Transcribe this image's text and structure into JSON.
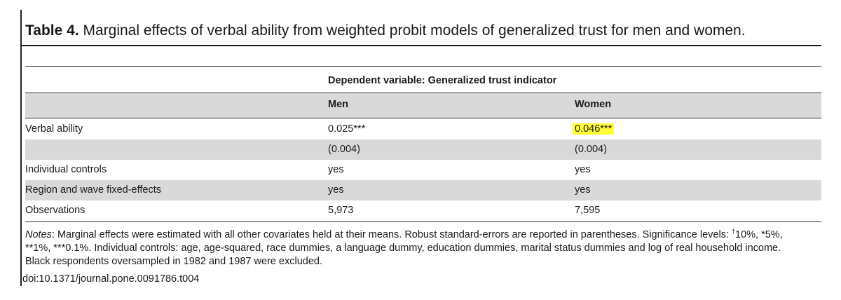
{
  "table": {
    "label": "Table 4.",
    "title": "Marginal effects of verbal ability from weighted probit models of generalized trust for men and women.",
    "dependent_variable_header": "Dependent variable: Generalized trust indicator",
    "columns": [
      "",
      "Men",
      "Women"
    ],
    "rows": [
      {
        "label": "Verbal ability",
        "men": "0.025***",
        "women": "0.046***"
      },
      {
        "label": "",
        "men": "(0.004)",
        "women": "(0.004)"
      },
      {
        "label": "Individual controls",
        "men": "yes",
        "women": "yes"
      },
      {
        "label": "Region and wave fixed-effects",
        "men": "yes",
        "women": "yes"
      },
      {
        "label": "Observations",
        "men": "5,973",
        "women": "7,595"
      }
    ],
    "highlighted_cell": "0.046***",
    "highlight_color": "#ffff33"
  },
  "notes": {
    "label": "Notes",
    "line1_after_label": ": Marginal effects were estimated with all other covariates held at their means. Robust standard-errors are reported in parentheses. Significance levels: ",
    "dagger": "†",
    "line1_end": "10%, *5%,",
    "line2": "**1%, ***0.1%. Individual controls: age, age-squared, race dummies, a language dummy, education dummies, marital status dummies and log of real household income.",
    "line3": "Black respondents oversampled in 1982 and 1987 were excluded."
  },
  "doi": "doi:10.1371/journal.pone.0091786.t004"
}
